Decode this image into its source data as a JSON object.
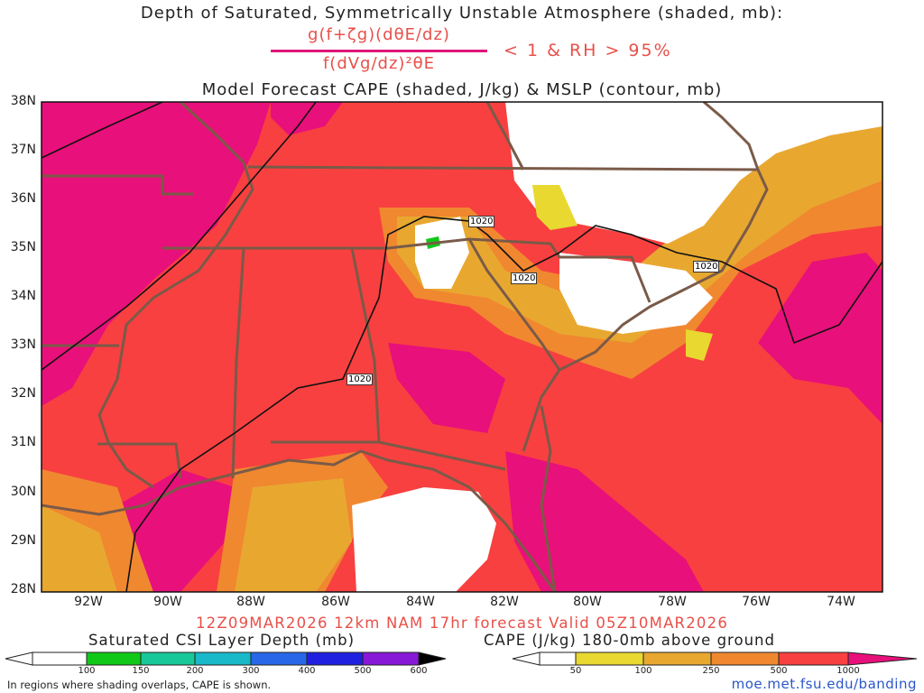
{
  "header": {
    "line1": "Depth of Saturated, Symmetrically Unstable Atmosphere (shaded, mb):",
    "numerator": "g(f+ζg)(dθE/dz)",
    "denominator": "f(dVg/dz)²θE",
    "condition": "< 1 & RH > 95%",
    "line3": "Model Forecast CAPE (shaded, J/kg) & MSLP (contour, mb)"
  },
  "axes": {
    "lat_labels": [
      "38N",
      "37N",
      "36N",
      "35N",
      "34N",
      "33N",
      "32N",
      "31N",
      "30N",
      "29N",
      "28N"
    ],
    "lon_labels": [
      "92W",
      "90W",
      "88W",
      "86W",
      "84W",
      "82W",
      "80W",
      "78W",
      "76W",
      "74W"
    ]
  },
  "contours": {
    "isobar_label": "1020"
  },
  "run_info": "12Z09MAR2026 12km NAM 17hr forecast Valid 05Z10MAR2026",
  "legend_csi": {
    "title": "Saturated CSI Layer Depth (mb)",
    "ticks": [
      "100",
      "150",
      "200",
      "300",
      "400",
      "500",
      "600"
    ],
    "colors": [
      "#ffffff",
      "#10c818",
      "#18c898",
      "#18b8c8",
      "#2868e8",
      "#2020e0",
      "#8818d8",
      "#000000"
    ]
  },
  "legend_cape": {
    "title": "CAPE (J/kg) 180-0mb above ground",
    "ticks": [
      "50",
      "100",
      "250",
      "500",
      "1000"
    ],
    "colors": [
      "#ffffff",
      "#e8d830",
      "#e8a830",
      "#f08830",
      "#f84040",
      "#e8107a"
    ]
  },
  "footnote": "In regions where shading overlaps, CAPE is shown.",
  "url": "moe.met.fsu.edu/banding",
  "colors": {
    "cape_1000": "#e8107a",
    "cape_500": "#f84040",
    "cape_250": "#f08830",
    "cape_100": "#e8a830",
    "cape_50": "#e8d830",
    "borders": "#7a5a48",
    "isobar": "#111111"
  }
}
